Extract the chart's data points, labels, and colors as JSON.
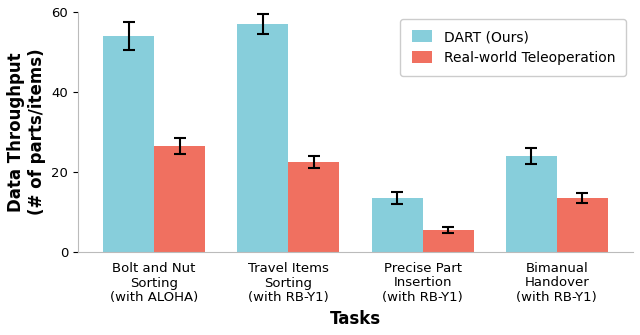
{
  "categories": [
    "Bolt and Nut\nSorting\n(with ALOHA)",
    "Travel Items\nSorting\n(with RB-Y1)",
    "Precise Part\nInsertion\n(with RB-Y1)",
    "Bimanual\nHandover\n(with RB-Y1)"
  ],
  "dart_values": [
    54,
    57,
    13.5,
    24
  ],
  "tele_values": [
    26.5,
    22.5,
    5.5,
    13.5
  ],
  "dart_errors": [
    3.5,
    2.5,
    1.5,
    2.0
  ],
  "tele_errors": [
    2.0,
    1.5,
    0.8,
    1.2
  ],
  "dart_color": "#87CEDB",
  "tele_color": "#F07060",
  "dart_label": "DART (Ours)",
  "tele_label": "Real-world Teleoperation",
  "xlabel": "Tasks",
  "ylabel": "Data Throughput\n(# of parts/items)",
  "ylim": [
    0,
    60
  ],
  "yticks": [
    0,
    20,
    40,
    60
  ],
  "bar_width": 0.38,
  "figsize": [
    6.4,
    3.35
  ],
  "dpi": 100,
  "background_color": "#ffffff",
  "legend_fontsize": 10,
  "axis_label_fontsize": 12,
  "tick_label_fontsize": 9.5
}
